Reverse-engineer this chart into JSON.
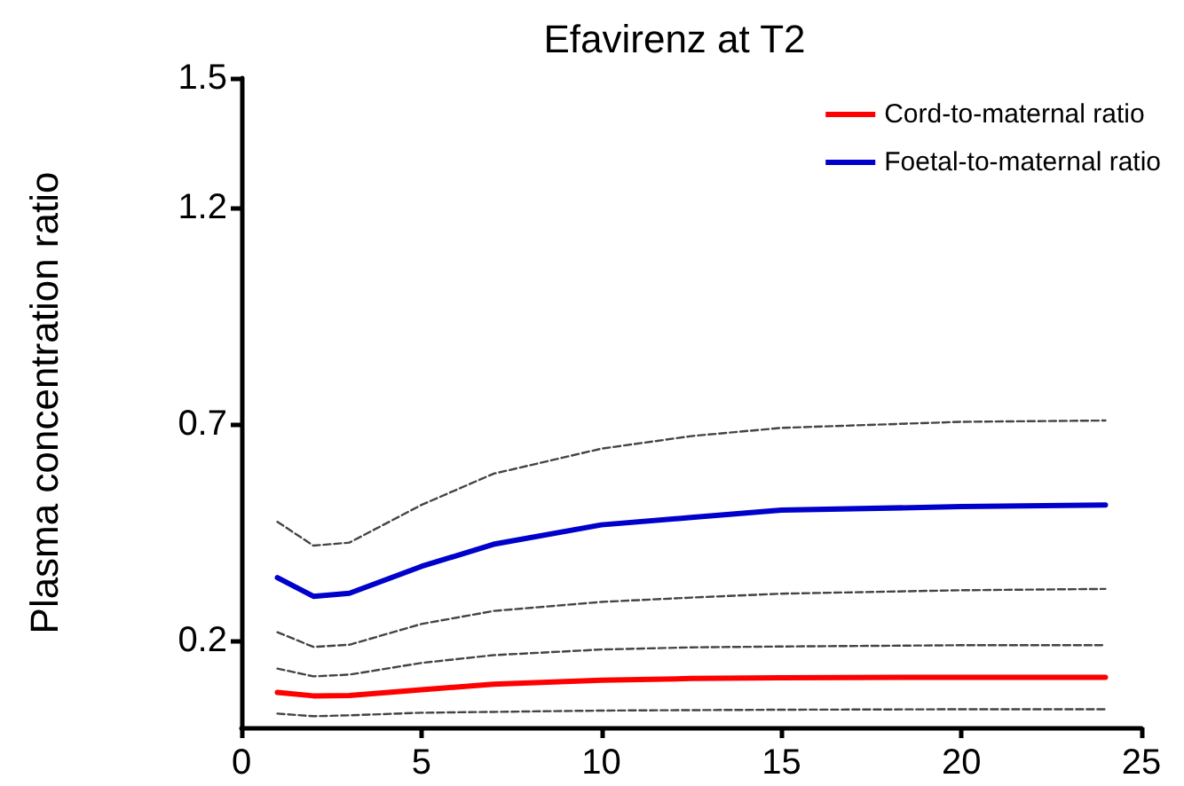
{
  "chart_data": {
    "type": "line",
    "title": "Efavirenz at T2",
    "ylabel": "Plasma concentration ratio",
    "x": [
      1,
      2,
      3,
      5,
      7,
      10,
      12.5,
      15,
      20,
      24
    ],
    "series": [
      {
        "name": "Cord-to-maternal ratio",
        "color": "#ff0000",
        "values": [
          0.081,
          0.073,
          0.074,
          0.087,
          0.1,
          0.109,
          0.113,
          0.115,
          0.116,
          0.116
        ]
      },
      {
        "name": "Foetal-to-maternal ratio",
        "color": "#0000cc",
        "values": [
          0.346,
          0.303,
          0.31,
          0.372,
          0.423,
          0.468,
          0.485,
          0.502,
          0.51,
          0.514
        ]
      },
      {
        "color": "#444444",
        "line_style": "dashed",
        "values": [
          0.032,
          0.026,
          0.028,
          0.034,
          0.036,
          0.039,
          0.04,
          0.041,
          0.042,
          0.042
        ]
      },
      {
        "color": "#444444",
        "line_style": "dashed",
        "values": [
          0.136,
          0.118,
          0.122,
          0.149,
          0.167,
          0.18,
          0.185,
          0.187,
          0.19,
          0.19
        ]
      },
      {
        "color": "#444444",
        "line_style": "dashed",
        "values": [
          0.22,
          0.186,
          0.191,
          0.239,
          0.269,
          0.29,
          0.3,
          0.309,
          0.317,
          0.32
        ]
      },
      {
        "color": "#444444",
        "line_style": "dashed",
        "values": [
          0.475,
          0.42,
          0.427,
          0.514,
          0.586,
          0.644,
          0.673,
          0.692,
          0.706,
          0.709
        ]
      }
    ],
    "xlim": [
      0,
      25
    ],
    "xticks": [
      0,
      5,
      10,
      15,
      20,
      25
    ],
    "ylim": [
      0,
      1.5
    ],
    "yticks": [
      0.2,
      0.7,
      1.2,
      1.5
    ],
    "grid": false,
    "legend": "top right",
    "marker": "none",
    "line_style": "solid"
  }
}
